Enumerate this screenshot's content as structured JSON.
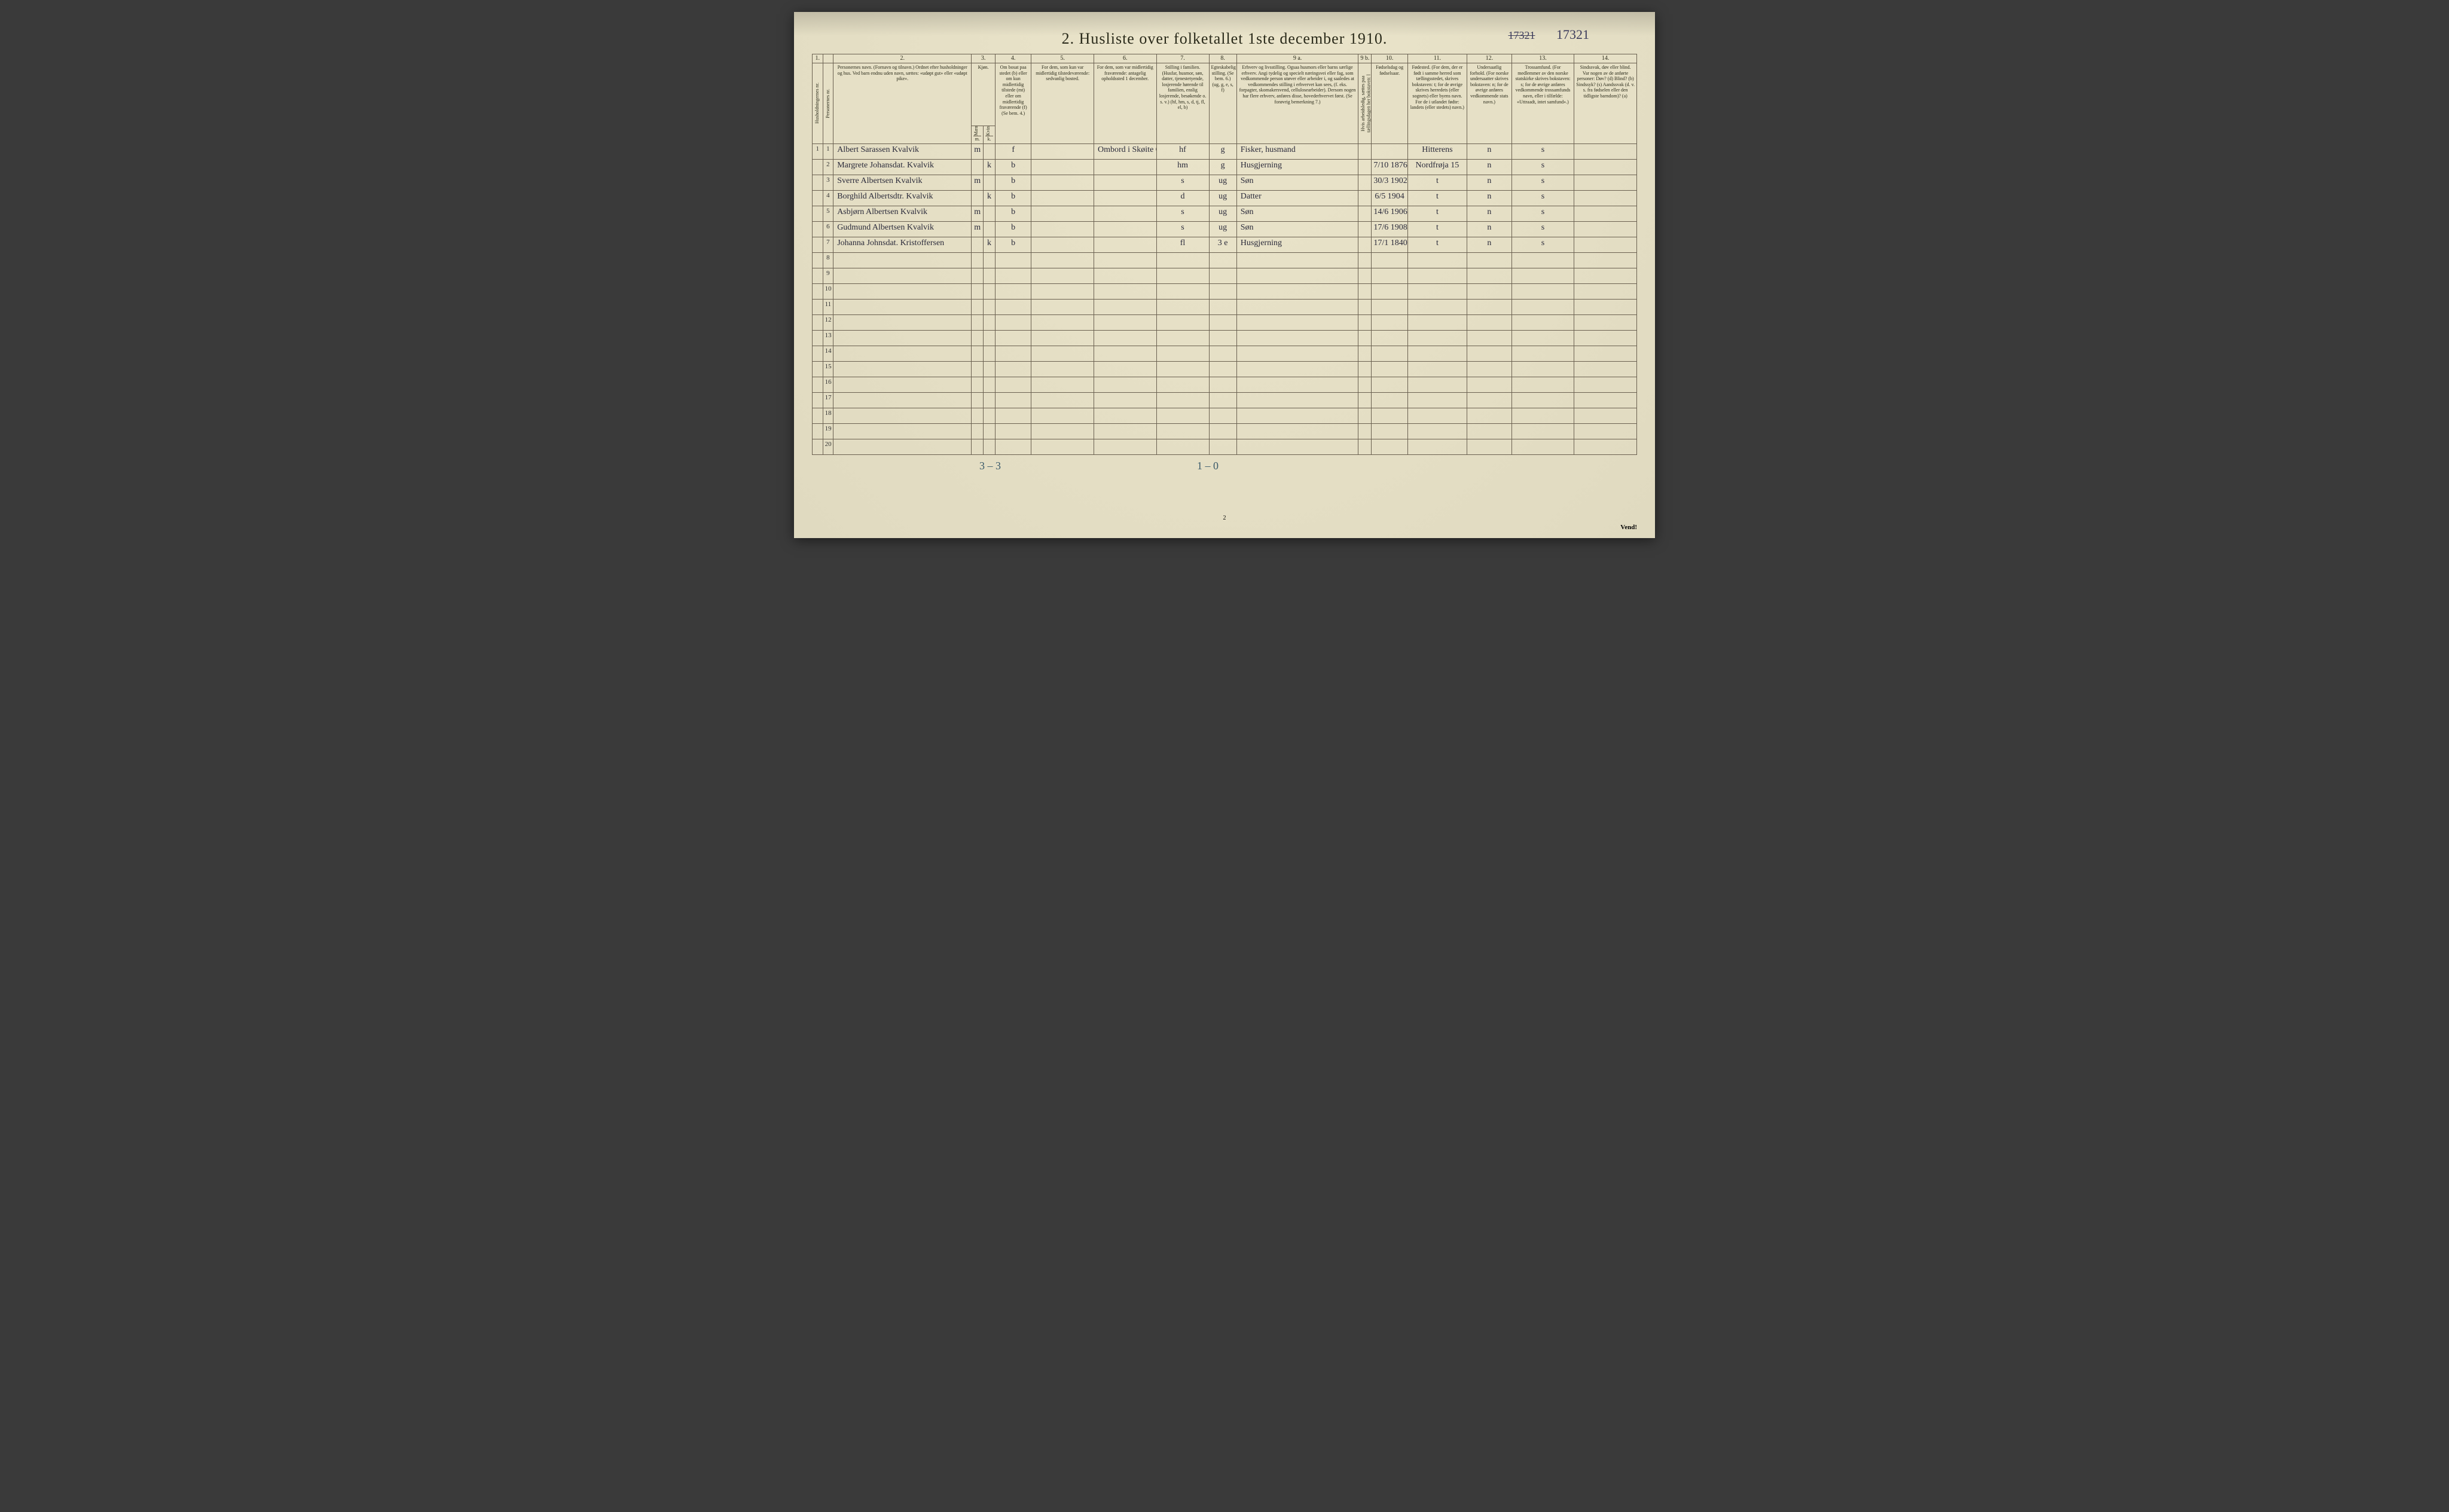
{
  "title": "2.  Husliste over folketallet 1ste december 1910.",
  "topright_crossed": "17321",
  "topright": "17321",
  "pagenum": "2",
  "vend": "Vend!",
  "bottom_left": "3 – 3",
  "bottom_mid": "1 – 0",
  "colnums": [
    "1.",
    "",
    "2.",
    "3.",
    "4.",
    "5.",
    "6.",
    "7.",
    "8.",
    "9 a.",
    "9 b.",
    "10.",
    "11.",
    "12.",
    "13.",
    "14."
  ],
  "headers": {
    "h1": "Husholdningernes nr.",
    "h2": "Personernes nr.",
    "h3": "Personernes navn.\n(Fornavn og tilnavn.)\nOrdnet efter husholdninger og hus.\nVed barn endnu uden navn, sættes: «udøpt gut» eller «udøpt pike».",
    "h4": "Kjøn.",
    "h4m": "Mænd.",
    "h4k": "Kvinder.",
    "h5": "Om bosat paa stedet (b) eller om kun midlertidig tilstede (mt) eller om midlertidig fraværende (f)\n(Se bem. 4.)",
    "h6": "For dem, som kun var midlertidig tilstedeværende:\nsedvanlig bosted.",
    "h7": "For dem, som var midlertidig fraværende:\nantagelig opholdssted 1 december.",
    "h8": "Stilling i familien.\n(Husfar, husmor, søn, datter, tjenestetyende, losjerende hørende til familien, enslig losjerende, besøkende o. s. v.)\n(hf, hm, s, d, tj, fl, el, b)",
    "h9": "Egteskabelig stilling.\n(Se bem. 6.)\n(ug, g, e, s, f)",
    "h10": "Erhverv og livsstilling.\nOgsaa husmors eller barns særlige erhverv. Angi tydelig og specielt næringsvei eller fag, som vedkommende person utøver eller arbeider i, og saaledes at vedkommendes stilling i erhvervet kan sees, (f. eks. forpagter, skomakersvend, cellulosearbeider). Dersom nogen har flere erhverv, anføres disse, hovederhvervet først.\n(Se forøvrig bemerkning 7.)",
    "h11": "Hvis arbeidsledig, sættes paa tællingsdagen her bokstaven: l",
    "h12": "Fødselsdag og fødselsaar.",
    "h13": "Fødested.\n(For dem, der er født i samme herred som tællingsstedet, skrives bokstaven: t; for de øvrige skrives herredets (eller sognets) eller byens navn. For de i utlandet fødte: landets (eller stedets) navn.)",
    "h14": "Undersaatlig forhold.\n(For norske undersaatter skrives bokstaven: n; for de øvrige anføres vedkommende stats navn.)",
    "h15": "Trossamfund.\n(For medlemmer av den norske statskirke skrives bokstaven: s; for de øvrige anføres vedkommende trossamfunds navn, eller i tilfælde: «Uttraadt, intet samfund».)",
    "h16": "Sindssvak, døv eller blind.\nVar nogen av de anførte personer:\nDøv? (d)\nBlind? (b)\nSindssyk? (s)\nAandssvak (d. v. s. fra fødselen eller den tidligste barndom)? (a)"
  },
  "rows": [
    {
      "hh": "1",
      "p": "1",
      "name": "Albert Sarassen Kvalvik",
      "m": "m",
      "k": "",
      "bosat": "f",
      "sedv": "",
      "oph": "Ombord i Skøite Gjøa",
      "fam": "hf",
      "egt": "g",
      "erhv": "Fisker, husmand",
      "arb": "",
      "fdato": "",
      "fsted": "Hitterens",
      "und": "n",
      "tro": "s",
      "sind": ""
    },
    {
      "hh": "",
      "p": "2",
      "name": "Margrete Johansdat. Kvalvik",
      "m": "",
      "k": "k",
      "bosat": "b",
      "sedv": "",
      "oph": "",
      "fam": "hm",
      "egt": "g",
      "erhv": "Husgjerning",
      "arb": "",
      "fdato": "7/10 1876",
      "fsted": "Nordfrøja 15",
      "und": "n",
      "tro": "s",
      "sind": ""
    },
    {
      "hh": "",
      "p": "3",
      "name": "Sverre Albertsen Kvalvik",
      "m": "m",
      "k": "",
      "bosat": "b",
      "sedv": "",
      "oph": "",
      "fam": "s",
      "egt": "ug",
      "erhv": "Søn",
      "arb": "",
      "fdato": "30/3 1902",
      "fsted": "t",
      "und": "n",
      "tro": "s",
      "sind": ""
    },
    {
      "hh": "",
      "p": "4",
      "name": "Borghild Albertsdtr. Kvalvik",
      "m": "",
      "k": "k",
      "bosat": "b",
      "sedv": "",
      "oph": "",
      "fam": "d",
      "egt": "ug",
      "erhv": "Datter",
      "arb": "",
      "fdato": "6/5 1904",
      "fsted": "t",
      "und": "n",
      "tro": "s",
      "sind": ""
    },
    {
      "hh": "",
      "p": "5",
      "name": "Asbjørn Albertsen Kvalvik",
      "m": "m",
      "k": "",
      "bosat": "b",
      "sedv": "",
      "oph": "",
      "fam": "s",
      "egt": "ug",
      "erhv": "Søn",
      "arb": "",
      "fdato": "14/6 1906",
      "fsted": "t",
      "und": "n",
      "tro": "s",
      "sind": ""
    },
    {
      "hh": "",
      "p": "6",
      "name": "Gudmund Albertsen Kvalvik",
      "m": "m",
      "k": "",
      "bosat": "b",
      "sedv": "",
      "oph": "",
      "fam": "s",
      "egt": "ug",
      "erhv": "Søn",
      "arb": "",
      "fdato": "17/6 1908",
      "fsted": "t",
      "und": "n",
      "tro": "s",
      "sind": ""
    },
    {
      "hh": "",
      "p": "7",
      "name": "Johanna Johnsdat. Kristoffersen",
      "m": "",
      "k": "k",
      "bosat": "b",
      "sedv": "",
      "oph": "",
      "fam": "fl",
      "egt": "3 e",
      "erhv": "Husgjerning",
      "arb": "",
      "fdato": "17/1 1840",
      "fsted": "t",
      "und": "n",
      "tro": "s",
      "sind": ""
    }
  ],
  "empty_rows": 13
}
